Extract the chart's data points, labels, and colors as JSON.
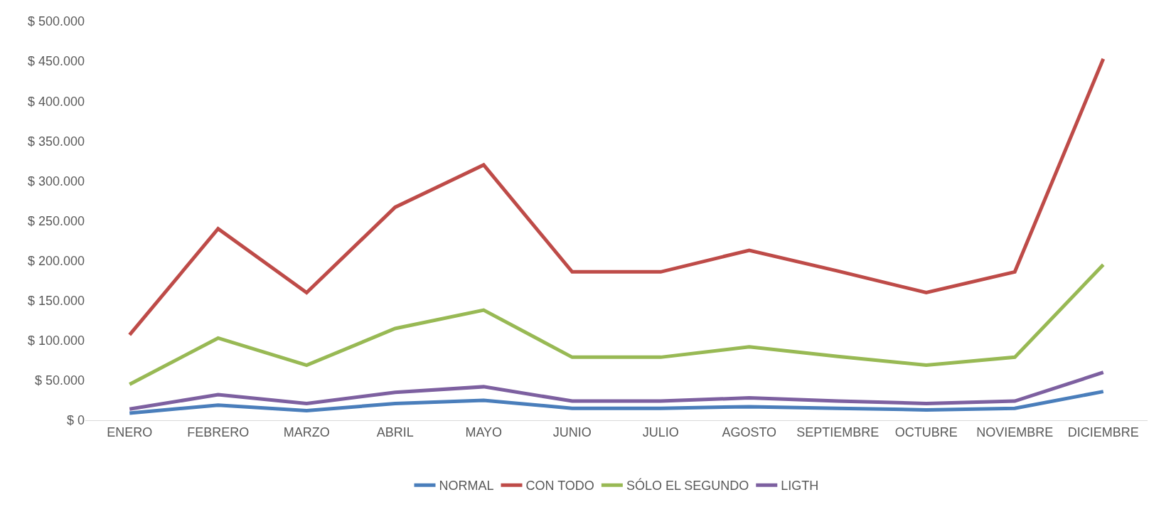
{
  "chart_data": {
    "type": "line",
    "categories": [
      "ENERO",
      "FEBRERO",
      "MARZO",
      "ABRIL",
      "MAYO",
      "JUNIO",
      "JULIO",
      "AGOSTO",
      "SEPTIEMBRE",
      "OCTUBRE",
      "NOVIEMBRE",
      "DICIEMBRE"
    ],
    "series": [
      {
        "name": "NORMAL",
        "color": "#4a7ebb",
        "values": [
          9000,
          19000,
          12000,
          21000,
          25000,
          15000,
          15000,
          17000,
          15000,
          13000,
          15000,
          36000
        ]
      },
      {
        "name": "CON TODO",
        "color": "#be4b48",
        "values": [
          107000,
          240000,
          160000,
          267000,
          320000,
          186000,
          186000,
          213000,
          187000,
          160000,
          186000,
          453000
        ]
      },
      {
        "name": "SÓLO EL SEGUNDO",
        "color": "#98b954",
        "values": [
          45000,
          103000,
          69000,
          115000,
          138000,
          79000,
          79000,
          92000,
          80000,
          69000,
          79000,
          195000
        ]
      },
      {
        "name": "LIGTH",
        "color": "#7d60a0",
        "values": [
          14000,
          32000,
          21000,
          35000,
          42000,
          24000,
          24000,
          28000,
          24000,
          21000,
          24000,
          60000
        ]
      }
    ],
    "ylim": [
      0,
      500000
    ],
    "yticks": [
      {
        "value": 0,
        "label": "$ 0"
      },
      {
        "value": 50000,
        "label": "$ 50.000"
      },
      {
        "value": 100000,
        "label": "$ 100.000"
      },
      {
        "value": 150000,
        "label": "$ 150.000"
      },
      {
        "value": 200000,
        "label": "$ 200.000"
      },
      {
        "value": 250000,
        "label": "$ 250.000"
      },
      {
        "value": 300000,
        "label": "$ 300.000"
      },
      {
        "value": 350000,
        "label": "$ 350.000"
      },
      {
        "value": 400000,
        "label": "$ 400.000"
      },
      {
        "value": 450000,
        "label": "$ 450.000"
      },
      {
        "value": 500000,
        "label": "$ 500.000"
      }
    ],
    "grid": false,
    "legend": "bottom",
    "marker": "none",
    "line_style": "solid"
  }
}
